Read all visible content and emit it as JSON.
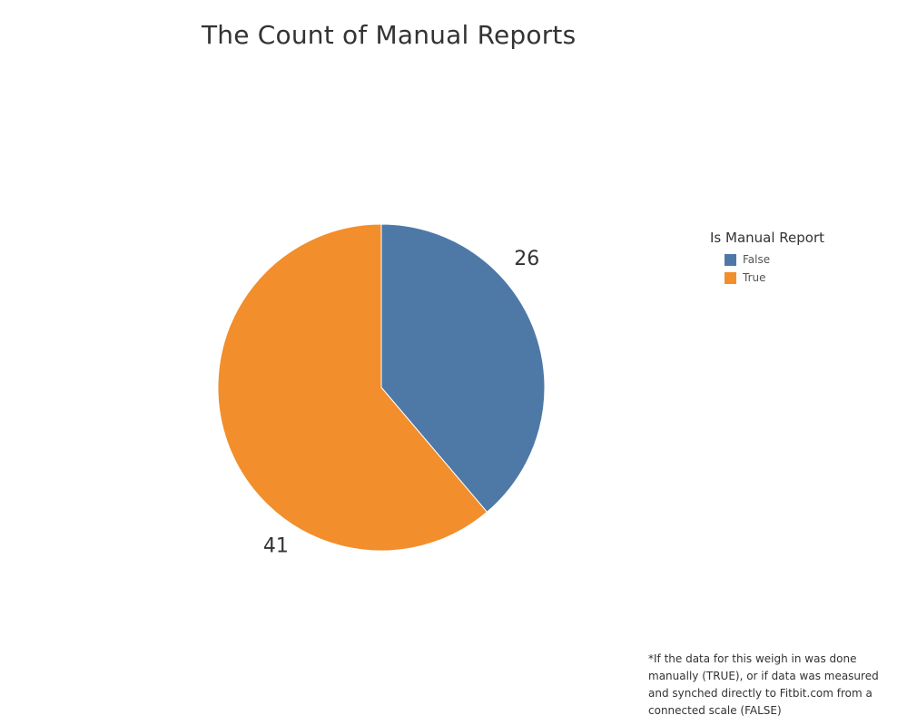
{
  "chart_data": {
    "type": "pie",
    "title": "The Count of Manual Reports",
    "legend": {
      "title": "Is Manual Report",
      "placement": "right"
    },
    "slices": [
      {
        "label": "False",
        "value": 26,
        "color": "#4e79a7"
      },
      {
        "label": "True",
        "value": 41,
        "color": "#f28e2b"
      }
    ],
    "footnote": "*If the data for this weigh in was done manually (TRUE), or if data was measured and synched directly to Fitbit.com from a connected scale (FALSE)"
  }
}
